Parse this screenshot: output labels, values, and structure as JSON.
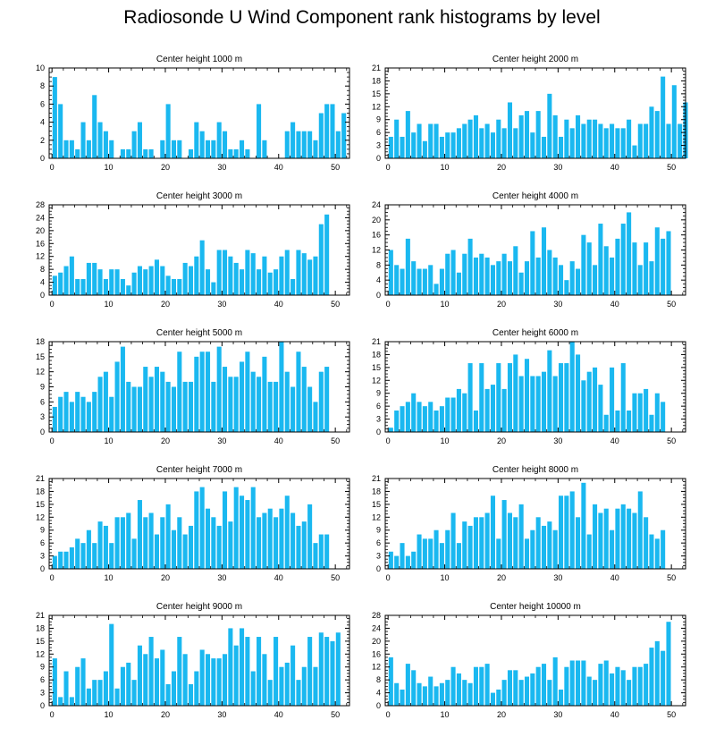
{
  "title": "Radiosonde U Wind Component rank histograms by level",
  "bar_color": "#1ab8f0",
  "chart_data": [
    {
      "type": "bar",
      "title": "Center height 1000 m",
      "ylim": [
        0,
        10
      ],
      "yticks": [
        0,
        2,
        4,
        6,
        8,
        10
      ],
      "xticks": [
        0,
        10,
        20,
        30,
        40,
        50
      ],
      "values": [
        9,
        6,
        2,
        2,
        1,
        4,
        2,
        7,
        4,
        3,
        2,
        0,
        1,
        1,
        3,
        4,
        1,
        1,
        0,
        2,
        6,
        2,
        2,
        0,
        1,
        4,
        3,
        2,
        2,
        4,
        3,
        1,
        1,
        2,
        1,
        0,
        6,
        2,
        0,
        0,
        0,
        3,
        4,
        3,
        3,
        3,
        2,
        5,
        6,
        6,
        3,
        5
      ]
    },
    {
      "type": "bar",
      "title": "Center height 2000 m",
      "ylim": [
        0,
        21
      ],
      "yticks": [
        0,
        3,
        6,
        9,
        12,
        15,
        18,
        21
      ],
      "xticks": [
        0,
        10,
        20,
        30,
        40,
        50
      ],
      "values": [
        5,
        9,
        5,
        11,
        6,
        8,
        4,
        8,
        8,
        5,
        6,
        6,
        7,
        8,
        9,
        10,
        7,
        8,
        6,
        9,
        7,
        13,
        7,
        10,
        11,
        6,
        11,
        5,
        15,
        10,
        5,
        9,
        7,
        10,
        8,
        9,
        9,
        8,
        7,
        8,
        7,
        7,
        9,
        3,
        8,
        8,
        12,
        11,
        19,
        8,
        17,
        8,
        13
      ]
    },
    {
      "type": "bar",
      "title": "Center height 3000 m",
      "ylim": [
        0,
        28
      ],
      "yticks": [
        0,
        4,
        8,
        12,
        16,
        20,
        24,
        28
      ],
      "xticks": [
        0,
        10,
        20,
        30,
        40,
        50
      ],
      "values": [
        6,
        7,
        9,
        12,
        5,
        5,
        10,
        10,
        8,
        5,
        8,
        8,
        5,
        3,
        7,
        9,
        8,
        9,
        11,
        9,
        6,
        5,
        5,
        10,
        9,
        12,
        17,
        8,
        4,
        14,
        14,
        12,
        10,
        8,
        14,
        13,
        8,
        12,
        7,
        8,
        12,
        14,
        5,
        14,
        13,
        11,
        12,
        22,
        25
      ]
    },
    {
      "type": "bar",
      "title": "Center height 4000 m",
      "ylim": [
        0,
        24
      ],
      "yticks": [
        0,
        4,
        8,
        12,
        16,
        20,
        24
      ],
      "xticks": [
        0,
        10,
        20,
        30,
        40,
        50
      ],
      "values": [
        12,
        8,
        7,
        15,
        9,
        7,
        7,
        8,
        3,
        7,
        11,
        12,
        6,
        11,
        15,
        10,
        11,
        10,
        8,
        9,
        11,
        9,
        13,
        6,
        9,
        17,
        10,
        18,
        12,
        10,
        8,
        4,
        9,
        7,
        16,
        14,
        8,
        19,
        13,
        10,
        15,
        19,
        22,
        14,
        8,
        14,
        9,
        18,
        15,
        17
      ]
    },
    {
      "type": "bar",
      "title": "Center height 5000 m",
      "ylim": [
        0,
        18
      ],
      "yticks": [
        0,
        3,
        6,
        9,
        12,
        15,
        18
      ],
      "xticks": [
        0,
        10,
        20,
        30,
        40,
        50
      ],
      "values": [
        5,
        7,
        8,
        6,
        8,
        7,
        6,
        8,
        11,
        12,
        7,
        14,
        17,
        10,
        9,
        9,
        13,
        11,
        13,
        12,
        10,
        9,
        16,
        10,
        10,
        15,
        16,
        16,
        10,
        17,
        13,
        11,
        11,
        14,
        16,
        12,
        11,
        15,
        10,
        10,
        18,
        12,
        9,
        16,
        13,
        9,
        6,
        12,
        13
      ]
    },
    {
      "type": "bar",
      "title": "Center height 6000 m",
      "ylim": [
        0,
        21
      ],
      "yticks": [
        0,
        3,
        6,
        9,
        12,
        15,
        18,
        21
      ],
      "xticks": [
        0,
        10,
        20,
        30,
        40,
        50
      ],
      "values": [
        1,
        5,
        6,
        7,
        9,
        7,
        6,
        7,
        5,
        6,
        8,
        8,
        10,
        9,
        16,
        5,
        16,
        10,
        11,
        16,
        10,
        16,
        18,
        13,
        17,
        13,
        13,
        14,
        19,
        13,
        16,
        16,
        21,
        18,
        12,
        14,
        15,
        11,
        4,
        15,
        5,
        16,
        5,
        9,
        9,
        10,
        4,
        9,
        7
      ]
    },
    {
      "type": "bar",
      "title": "Center height 7000 m",
      "ylim": [
        0,
        21
      ],
      "yticks": [
        0,
        3,
        6,
        9,
        12,
        15,
        18,
        21
      ],
      "xticks": [
        0,
        10,
        20,
        30,
        40,
        50
      ],
      "values": [
        3,
        4,
        4,
        5,
        7,
        6,
        9,
        6,
        11,
        10,
        6,
        12,
        12,
        13,
        7,
        16,
        12,
        13,
        8,
        12,
        15,
        9,
        12,
        8,
        10,
        18,
        19,
        14,
        12,
        10,
        18,
        11,
        19,
        17,
        16,
        19,
        12,
        13,
        14,
        12,
        14,
        17,
        13,
        10,
        11,
        15,
        6,
        8,
        8
      ]
    },
    {
      "type": "bar",
      "title": "Center height 8000 m",
      "ylim": [
        0,
        21
      ],
      "yticks": [
        0,
        3,
        6,
        9,
        12,
        15,
        18,
        21
      ],
      "xticks": [
        0,
        10,
        20,
        30,
        40,
        50
      ],
      "values": [
        4,
        3,
        6,
        3,
        4,
        8,
        7,
        7,
        9,
        6,
        9,
        13,
        6,
        11,
        10,
        12,
        12,
        13,
        17,
        7,
        16,
        13,
        12,
        15,
        7,
        9,
        12,
        10,
        11,
        9,
        17,
        17,
        18,
        12,
        20,
        8,
        15,
        13,
        14,
        9,
        14,
        15,
        14,
        13,
        18,
        12,
        8,
        7,
        9
      ]
    },
    {
      "type": "bar",
      "title": "Center height 9000 m",
      "ylim": [
        0,
        21
      ],
      "yticks": [
        0,
        3,
        6,
        9,
        12,
        15,
        18,
        21
      ],
      "xticks": [
        0,
        10,
        20,
        30,
        40,
        50
      ],
      "values": [
        11,
        2,
        8,
        2,
        9,
        11,
        4,
        6,
        6,
        8,
        19,
        4,
        9,
        10,
        6,
        14,
        12,
        16,
        11,
        13,
        5,
        8,
        16,
        12,
        5,
        8,
        13,
        12,
        11,
        11,
        12,
        18,
        14,
        18,
        16,
        8,
        16,
        12,
        6,
        16,
        9,
        10,
        14,
        6,
        9,
        16,
        9,
        17,
        16,
        15,
        17
      ]
    },
    {
      "type": "bar",
      "title": "Center height 10000 m",
      "ylim": [
        0,
        28
      ],
      "yticks": [
        0,
        4,
        8,
        12,
        16,
        20,
        24,
        28
      ],
      "xticks": [
        0,
        10,
        20,
        30,
        40,
        50
      ],
      "values": [
        15,
        7,
        5,
        13,
        11,
        7,
        6,
        9,
        6,
        7,
        8,
        12,
        10,
        8,
        7,
        12,
        12,
        13,
        4,
        5,
        8,
        11,
        11,
        8,
        9,
        10,
        12,
        13,
        8,
        15,
        5,
        12,
        14,
        14,
        14,
        9,
        8,
        13,
        14,
        10,
        12,
        11,
        8,
        12,
        12,
        13,
        18,
        20,
        17,
        26
      ]
    }
  ]
}
